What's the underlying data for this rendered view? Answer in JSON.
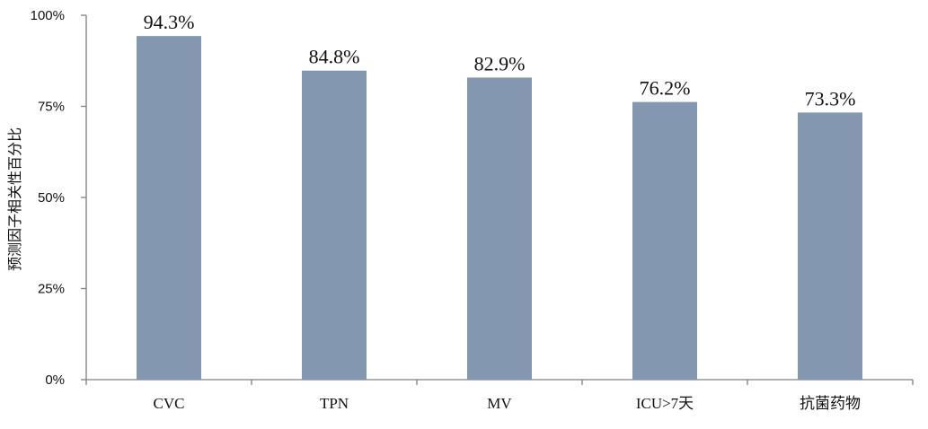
{
  "chart_data": {
    "type": "bar",
    "categories": [
      "CVC",
      "TPN",
      "MV",
      "ICU>7天",
      "抗菌药物"
    ],
    "values": [
      94.3,
      84.8,
      82.9,
      76.2,
      73.3
    ],
    "data_labels": [
      "94.3%",
      "84.8%",
      "82.9%",
      "76.2%",
      "73.3%"
    ],
    "title": "",
    "xlabel": "",
    "ylabel": "预测因子相关性百分比",
    "ylim": [
      0,
      100
    ],
    "yticks": [
      0,
      25,
      50,
      75,
      100
    ],
    "ytick_labels": [
      "0%",
      "25%",
      "50%",
      "75%",
      "100%"
    ],
    "grid": false,
    "legend": "none",
    "bar_color": "#8497b0",
    "axis_color": "#808080"
  }
}
